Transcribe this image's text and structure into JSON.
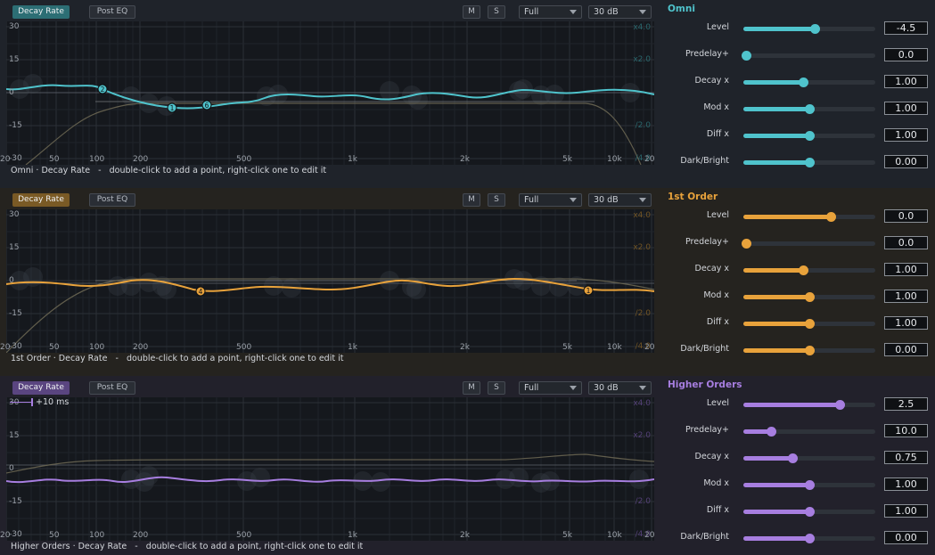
{
  "panels": [
    {
      "title": "Omni",
      "accent": "#4fc3cc",
      "dim_accent": "#2c6e74",
      "toolbar": {
        "decay_rate": "Decay Rate",
        "post_eq": "Post EQ",
        "m": "M",
        "s": "S",
        "range": "Full",
        "db": "30 dB"
      },
      "y_labels": [
        "30",
        "15",
        "0",
        "-15",
        "-30"
      ],
      "right_labels": [
        "x4.0",
        "x2.0",
        "/2.0",
        "/4.0"
      ],
      "x_labels": [
        "20",
        "50",
        "100",
        "200",
        "500",
        "1k",
        "2k",
        "5k",
        "10k",
        "20"
      ],
      "footer": "Omni · Decay Rate   -   double-click to add a point, right-click one to edit it",
      "points": [
        "2",
        "1",
        "6"
      ],
      "params": [
        {
          "label": "Level",
          "value": "-4.5",
          "pos": 0.54
        },
        {
          "label": "Predelay+",
          "value": "0.0",
          "pos": 0.02
        },
        {
          "label": "Decay x",
          "value": "1.00",
          "pos": 0.45
        },
        {
          "label": "Mod x",
          "value": "1.00",
          "pos": 0.5
        },
        {
          "label": "Diff x",
          "value": "1.00",
          "pos": 0.5
        },
        {
          "label": "Dark/Bright",
          "value": "0.00",
          "pos": 0.5
        }
      ]
    },
    {
      "title": "1st Order",
      "accent": "#e8a23b",
      "dim_accent": "#7a5a25",
      "toolbar": {
        "decay_rate": "Decay Rate",
        "post_eq": "Post EQ",
        "m": "M",
        "s": "S",
        "range": "Full",
        "db": "30 dB"
      },
      "y_labels": [
        "30",
        "15",
        "0",
        "-15",
        "-30"
      ],
      "right_labels": [
        "x4.0",
        "x2.0",
        "/2.0",
        "/4.0"
      ],
      "x_labels": [
        "20",
        "50",
        "100",
        "200",
        "500",
        "1k",
        "2k",
        "5k",
        "10k",
        "20"
      ],
      "footer": "1st Order · Decay Rate   -   double-click to add a point, right-click one to edit it",
      "points": [
        "4",
        "1"
      ],
      "params": [
        {
          "label": "Level",
          "value": "0.0",
          "pos": 0.66
        },
        {
          "label": "Predelay+",
          "value": "0.0",
          "pos": 0.02
        },
        {
          "label": "Decay x",
          "value": "1.00",
          "pos": 0.45
        },
        {
          "label": "Mod x",
          "value": "1.00",
          "pos": 0.5
        },
        {
          "label": "Diff x",
          "value": "1.00",
          "pos": 0.5
        },
        {
          "label": "Dark/Bright",
          "value": "0.00",
          "pos": 0.5
        }
      ]
    },
    {
      "title": "Higher Orders",
      "accent": "#a77ee0",
      "dim_accent": "#5a4580",
      "toolbar": {
        "decay_rate": "Decay Rate",
        "post_eq": "Post EQ",
        "m": "M",
        "s": "S",
        "range": "Full",
        "db": "30 dB"
      },
      "y_labels": [
        "30",
        "15",
        "0",
        "-15",
        "-30"
      ],
      "right_labels": [
        "x4.0",
        "x2.0",
        "/2.0",
        "/4.0"
      ],
      "x_labels": [
        "20",
        "50",
        "100",
        "200",
        "500",
        "1k",
        "2k",
        "5k",
        "10k",
        "20"
      ],
      "overlay_label": "+10 ms",
      "footer": "Higher Orders · Decay Rate   -   double-click to add a point, right-click one to edit it",
      "points": [],
      "params": [
        {
          "label": "Level",
          "value": "2.5",
          "pos": 0.73
        },
        {
          "label": "Predelay+",
          "value": "10.0",
          "pos": 0.21
        },
        {
          "label": "Decay x",
          "value": "0.75",
          "pos": 0.37
        },
        {
          "label": "Mod x",
          "value": "1.00",
          "pos": 0.5
        },
        {
          "label": "Diff x",
          "value": "1.00",
          "pos": 0.5
        },
        {
          "label": "Dark/Bright",
          "value": "0.00",
          "pos": 0.5
        }
      ]
    }
  ]
}
